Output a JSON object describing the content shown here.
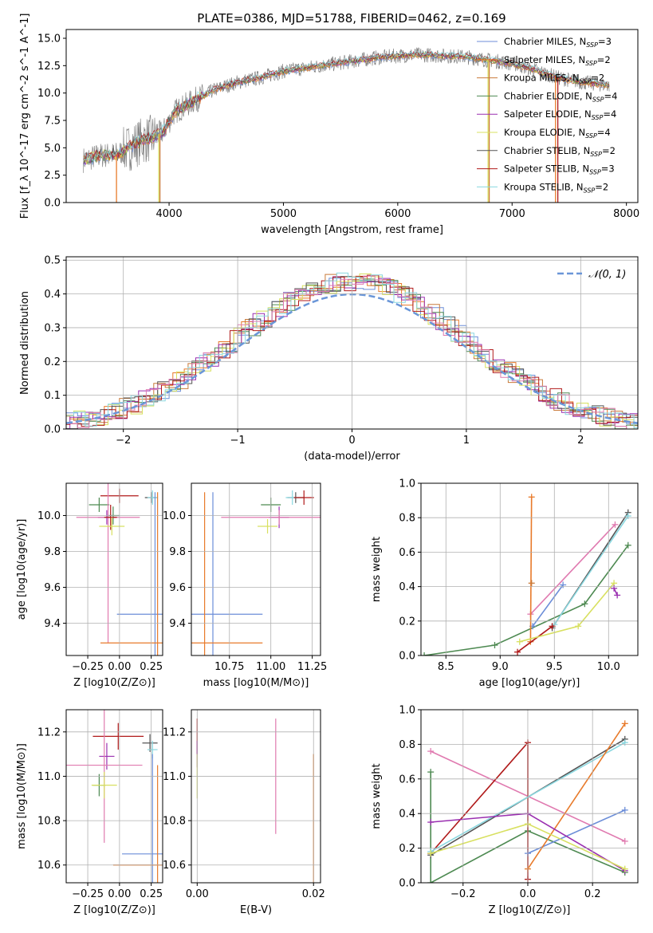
{
  "colors": {
    "Chabrier MILES": "#6c8ed8",
    "Salpeter MILES": "#e87a2a",
    "Kroupa MILES": "#c97a3a",
    "Chabrier ELODIE": "#4e8a52",
    "Salpeter ELODIE": "#9a2fb0",
    "Kroupa ELODIE": "#d8e060",
    "Chabrier STELIB": "#555555",
    "Salpeter STELIB": "#b01a1a",
    "Kroupa STELIB": "#8ad8e0",
    "pink": "#e07ab0",
    "normal": "#6a96d8"
  },
  "chart_data": [
    {
      "type": "line",
      "title": "PLATE=0386, MJD=51788, FIBERID=0462, z=0.169",
      "xlabel": "wavelength [Angstrom, rest frame]",
      "ylabel": "Flux [f_λ 10^-17 erg cm^-2 s^-1 A^-1]",
      "xlim": [
        3100,
        8100
      ],
      "ylim": [
        0,
        15.8
      ],
      "xticks": [
        "4000",
        "5000",
        "6000",
        "7000",
        "8000"
      ],
      "yticks": [
        "0.0",
        "2.5",
        "5.0",
        "7.5",
        "10.0",
        "12.5",
        "15.0"
      ],
      "legend": [
        {
          "label": "Chabrier MILES, N_SSP=3",
          "color": "#6c8ed8"
        },
        {
          "label": "Salpeter MILES, N_SSP=2",
          "color": "#e87a2a"
        },
        {
          "label": "Kroupa MILES, N_SSP=2",
          "color": "#c97a3a"
        },
        {
          "label": "Chabrier ELODIE, N_SSP=4",
          "color": "#4e8a52"
        },
        {
          "label": "Salpeter ELODIE, N_SSP=4",
          "color": "#9a2fb0"
        },
        {
          "label": "Kroupa ELODIE, N_SSP=4",
          "color": "#d8e060"
        },
        {
          "label": "Chabrier STELIB, N_SSP=2",
          "color": "#555555"
        },
        {
          "label": "Salpeter STELIB, N_SSP=3",
          "color": "#b01a1a"
        },
        {
          "label": "Kroupa STELIB, N_SSP=2",
          "color": "#8ad8e0"
        }
      ],
      "legend_position": "upper-right",
      "continuum": [
        [
          3250,
          3.9
        ],
        [
          3400,
          4.3
        ],
        [
          3550,
          4.4
        ],
        [
          3650,
          5.0
        ],
        [
          3750,
          5.6
        ],
        [
          3850,
          5.9
        ],
        [
          3950,
          6.5
        ],
        [
          4050,
          8.3
        ],
        [
          4200,
          9.2
        ],
        [
          4400,
          10.3
        ],
        [
          4600,
          11.0
        ],
        [
          4800,
          11.4
        ],
        [
          5000,
          12.0
        ],
        [
          5200,
          12.3
        ],
        [
          5400,
          12.6
        ],
        [
          5600,
          12.9
        ],
        [
          5800,
          13.2
        ],
        [
          6000,
          13.4
        ],
        [
          6200,
          13.5
        ],
        [
          6400,
          13.4
        ],
        [
          6600,
          13.3
        ],
        [
          6800,
          13.0
        ],
        [
          7000,
          12.7
        ],
        [
          7200,
          12.1
        ],
        [
          7400,
          11.4
        ],
        [
          7600,
          11.0
        ],
        [
          7850,
          10.7
        ]
      ],
      "spikes": [
        {
          "x": 3540,
          "color": "#e87a2a"
        },
        {
          "x": 3910,
          "color": "#d8e060"
        },
        {
          "x": 3920,
          "color": "#c97a3a"
        },
        {
          "x": 6790,
          "color": "#d8e060"
        },
        {
          "x": 6800,
          "color": "#c97a3a"
        },
        {
          "x": 7380,
          "color": "#e87a2a"
        },
        {
          "x": 7400,
          "color": "#b01a1a"
        }
      ]
    },
    {
      "type": "line",
      "xlabel": "(data-model)/error",
      "ylabel": "Normed distribution",
      "xlim": [
        -2.5,
        2.5
      ],
      "ylim": [
        0,
        0.51
      ],
      "xticks": [
        "−2",
        "−1",
        "0",
        "1",
        "2"
      ],
      "yticks": [
        "0.0",
        "0.1",
        "0.2",
        "0.3",
        "0.4",
        "0.5"
      ],
      "legend": [
        {
          "label": "N(0,1)",
          "color": "#6a96d8",
          "style": "dashed"
        }
      ],
      "legend_position": "upper-right",
      "grid": true
    },
    {
      "type": "scatter",
      "xlabel": "Z [log10(Z/Z⊙)]",
      "ylabel": "age  [log10(age/yr)]",
      "xlim": [
        -0.42,
        0.34
      ],
      "ylim": [
        9.22,
        10.18
      ],
      "xticks": [
        "−0.25",
        "0.00",
        "0.25"
      ],
      "yticks": [
        "9.4",
        "9.6",
        "9.8",
        "10.0"
      ],
      "grid": true,
      "points": [
        {
          "x": 0.25,
          "y": 10.1,
          "xerr": 0.05,
          "yerr": 0.03,
          "color": "#555555"
        },
        {
          "x": 0.26,
          "y": 10.1,
          "xerr": 0.04,
          "yerr": 0.04,
          "color": "#8ad8e0"
        },
        {
          "x": -0.16,
          "y": 10.06,
          "xerr": 0.08,
          "yerr": 0.04,
          "color": "#4e8a52"
        },
        {
          "x": 0.0,
          "y": 10.11,
          "xerr": 0.15,
          "yerr": 0.04,
          "color": "#b01a1a"
        },
        {
          "x": -0.05,
          "y": 10.0,
          "xerr": 0.05,
          "yerr": 0.05,
          "color": "#4e8a52"
        },
        {
          "x": -0.1,
          "y": 9.99,
          "xerr": 0.07,
          "yerr": 0.04,
          "color": "#9a2fb0"
        },
        {
          "x": -0.09,
          "y": 9.99,
          "xerr": 0.25,
          "yerr": 0.7,
          "color": "#e07ab0"
        },
        {
          "x": -0.07,
          "y": 9.99,
          "xerr": 0.05,
          "yerr": 0.07,
          "color": "#b01a1a"
        },
        {
          "x": -0.06,
          "y": 9.94,
          "xerr": 0.1,
          "yerr": 0.05,
          "color": "#d8e060"
        },
        {
          "x": 0.28,
          "y": 9.45,
          "xerr": 0.3,
          "yerr": 0.68,
          "color": "#6c8ed8"
        },
        {
          "x": 0.3,
          "y": 9.29,
          "xerr": 0.45,
          "yerr": 0.84,
          "color": "#e87a2a"
        }
      ]
    },
    {
      "type": "scatter",
      "xlabel": "mass [log10(M/M⊙)]",
      "ylabel": "",
      "xlim": [
        10.52,
        11.3
      ],
      "ylim": [
        9.22,
        10.18
      ],
      "xticks": [
        "10.75",
        "11.00",
        "11.25"
      ],
      "yticks": [
        "9.4",
        "9.6",
        "9.8",
        "10.0"
      ],
      "grid": true,
      "points": [
        {
          "x": 11.15,
          "y": 10.1,
          "xerr": 0.05,
          "yerr": 0.03,
          "color": "#555555"
        },
        {
          "x": 11.13,
          "y": 10.1,
          "xerr": 0.04,
          "yerr": 0.04,
          "color": "#8ad8e0"
        },
        {
          "x": 11.2,
          "y": 10.1,
          "xerr": 0.06,
          "yerr": 0.04,
          "color": "#b01a1a"
        },
        {
          "x": 11.0,
          "y": 10.06,
          "xerr": 0.06,
          "yerr": 0.04,
          "color": "#4e8a52"
        },
        {
          "x": 11.05,
          "y": 9.99,
          "xerr": 0.06,
          "yerr": 0.06,
          "color": "#9a2fb0"
        },
        {
          "x": 11.05,
          "y": 9.99,
          "xerr": 0.35,
          "yerr": 0.04,
          "color": "#e07ab0"
        },
        {
          "x": 10.98,
          "y": 9.94,
          "xerr": 0.06,
          "yerr": 0.04,
          "color": "#d8e060"
        },
        {
          "x": 10.65,
          "y": 9.45,
          "xerr": 0.3,
          "yerr": 0.68,
          "color": "#6c8ed8"
        },
        {
          "x": 10.6,
          "y": 9.29,
          "xerr": 0.35,
          "yerr": 0.84,
          "color": "#e87a2a"
        }
      ]
    },
    {
      "type": "line",
      "xlabel": "age  [log10(age/yr)]",
      "ylabel": "mass weight",
      "xlim": [
        8.27,
        10.27
      ],
      "ylim": [
        0,
        1
      ],
      "xticks": [
        "8.5",
        "9.0",
        "9.5",
        "10.0"
      ],
      "yticks": [
        "0.0",
        "0.2",
        "0.4",
        "0.6",
        "0.8",
        "1.0"
      ],
      "grid": true,
      "series": [
        {
          "color": "#4e8a52",
          "points": [
            [
              8.3,
              0.0
            ],
            [
              8.95,
              0.06
            ],
            [
              9.78,
              0.3
            ],
            [
              10.18,
              0.64
            ]
          ]
        },
        {
          "color": "#e07ab0",
          "points": [
            [
              9.28,
              0.24
            ],
            [
              10.06,
              0.76
            ]
          ]
        },
        {
          "color": "#6c8ed8",
          "points": [
            [
              9.3,
              0.17
            ],
            [
              9.58,
              0.41
            ]
          ]
        },
        {
          "color": "#e87a2a",
          "points": [
            [
              9.28,
              0.08
            ],
            [
              9.29,
              0.92
            ]
          ]
        },
        {
          "color": "#c97a3a",
          "points": [
            [
              9.29,
              0.42
            ]
          ]
        },
        {
          "color": "#555555",
          "points": [
            [
              9.48,
              0.16
            ],
            [
              10.18,
              0.83
            ]
          ]
        },
        {
          "color": "#8ad8e0",
          "points": [
            [
              9.5,
              0.18
            ],
            [
              10.18,
              0.81
            ]
          ]
        },
        {
          "color": "#b01a1a",
          "points": [
            [
              9.16,
              0.02
            ],
            [
              9.48,
              0.17
            ]
          ]
        },
        {
          "color": "#d8e060",
          "points": [
            [
              9.18,
              0.08
            ],
            [
              9.72,
              0.17
            ],
            [
              10.05,
              0.42
            ]
          ]
        },
        {
          "color": "#9a2fb0",
          "points": [
            [
              10.05,
              0.39
            ],
            [
              10.08,
              0.35
            ]
          ]
        }
      ]
    },
    {
      "type": "scatter",
      "xlabel": "Z [log10(Z/Z⊙)]",
      "ylabel": "mass [log10(M/M⊙)]",
      "xlim": [
        -0.42,
        0.34
      ],
      "ylim": [
        10.52,
        11.3
      ],
      "xticks": [
        "−0.25",
        "0.00",
        "0.25"
      ],
      "yticks": [
        "10.6",
        "10.8",
        "11.0",
        "11.2"
      ],
      "grid": true,
      "points": [
        {
          "x": -0.01,
          "y": 11.18,
          "xerr": 0.2,
          "yerr": 0.06,
          "color": "#b01a1a"
        },
        {
          "x": 0.24,
          "y": 11.15,
          "xerr": 0.06,
          "yerr": 0.04,
          "color": "#555555"
        },
        {
          "x": 0.26,
          "y": 11.12,
          "xerr": 0.04,
          "yerr": 0.04,
          "color": "#8ad8e0"
        },
        {
          "x": -0.1,
          "y": 11.09,
          "xerr": 0.06,
          "yerr": 0.06,
          "color": "#9a2fb0"
        },
        {
          "x": -0.12,
          "y": 11.05,
          "xerr": 0.3,
          "yerr": 0.35,
          "color": "#e07ab0"
        },
        {
          "x": -0.16,
          "y": 10.96,
          "xerr": 0.05,
          "yerr": 0.05,
          "color": "#4e8a52"
        },
        {
          "x": -0.12,
          "y": 10.96,
          "xerr": 0.1,
          "yerr": 0.06,
          "color": "#d8e060"
        },
        {
          "x": 0.26,
          "y": 10.65,
          "xerr": 0.24,
          "yerr": 0.45,
          "color": "#6c8ed8"
        },
        {
          "x": 0.3,
          "y": 10.6,
          "xerr": 0.35,
          "yerr": 0.45,
          "color": "#e87a2a"
        }
      ]
    },
    {
      "type": "scatter",
      "xlabel": "E(B-V)",
      "ylabel": "",
      "xlim": [
        -0.001,
        0.0212
      ],
      "ylim": [
        10.52,
        11.3
      ],
      "xticks": [
        "0.00",
        "0.02"
      ],
      "yticks": [
        "10.6",
        "10.8",
        "11.0",
        "11.2"
      ],
      "grid": true,
      "points": [
        {
          "x": 0.0,
          "y": 11.18,
          "yerr": 0.08,
          "color": "#b01a1a"
        },
        {
          "x": 0.0,
          "y": 11.1,
          "yerr": 0.06,
          "color": "#9a2fb0"
        },
        {
          "x": 0.0,
          "y": 11.0,
          "yerr": 0.1,
          "color": "#d8e060"
        },
        {
          "x": 0.0135,
          "y": 11.0,
          "yerr": 0.26,
          "color": "#e07ab0"
        },
        {
          "x": 0.02,
          "y": 10.8,
          "yerr": 0.3,
          "color": "#e87a2a"
        }
      ]
    },
    {
      "type": "line",
      "xlabel": "Z [log10(Z/Z⊙)]",
      "ylabel": "mass weight",
      "xlim": [
        -0.33,
        0.34
      ],
      "ylim": [
        0,
        1
      ],
      "xticks": [
        "−0.2",
        "0.0",
        "0.2"
      ],
      "yticks": [
        "0.0",
        "0.2",
        "0.4",
        "0.6",
        "0.8",
        "1.0"
      ],
      "grid": true,
      "series": [
        {
          "color": "#e07ab0",
          "points": [
            [
              -0.3,
              0.76
            ],
            [
              0.3,
              0.24
            ]
          ]
        },
        {
          "color": "#4e8a52",
          "points": [
            [
              -0.3,
              0.64
            ],
            [
              -0.3,
              0.0
            ],
            [
              0.0,
              0.3
            ],
            [
              0.3,
              0.06
            ]
          ]
        },
        {
          "color": "#b01a1a",
          "points": [
            [
              -0.3,
              0.17
            ],
            [
              0.0,
              0.81
            ],
            [
              0.0,
              0.02
            ]
          ]
        },
        {
          "color": "#555555",
          "points": [
            [
              -0.3,
              0.16
            ],
            [
              0.3,
              0.83
            ]
          ]
        },
        {
          "color": "#8ad8e0",
          "points": [
            [
              -0.3,
              0.18
            ],
            [
              0.3,
              0.81
            ]
          ]
        },
        {
          "color": "#6c8ed8",
          "points": [
            [
              0.0,
              0.17
            ],
            [
              0.3,
              0.42
            ]
          ]
        },
        {
          "color": "#e87a2a",
          "points": [
            [
              0.0,
              0.08
            ],
            [
              0.3,
              0.92
            ]
          ]
        },
        {
          "color": "#9a2fb0",
          "points": [
            [
              -0.3,
              0.35
            ],
            [
              0.0,
              0.4
            ],
            [
              0.3,
              0.07
            ]
          ]
        },
        {
          "color": "#d8e060",
          "points": [
            [
              -0.3,
              0.17
            ],
            [
              0.0,
              0.34
            ],
            [
              0.3,
              0.08
            ]
          ]
        }
      ]
    }
  ]
}
